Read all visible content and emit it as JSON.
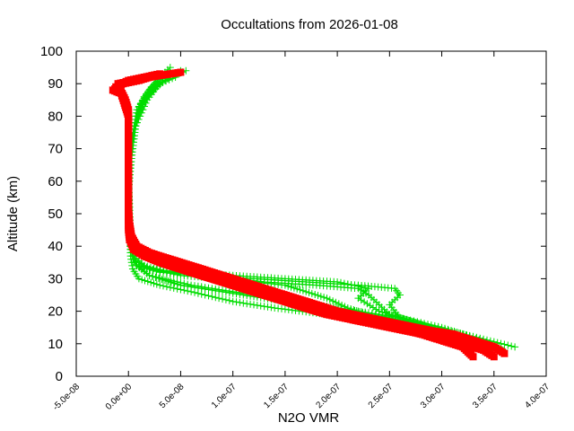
{
  "chart_data": {
    "type": "scatter",
    "title": "Occultations from 2026-01-08",
    "xlabel": "N2O VMR",
    "ylabel": "Altitude (km)",
    "xlim": [
      -5e-08,
      4e-07
    ],
    "ylim": [
      0,
      100
    ],
    "x_ticks": [
      -5e-08,
      0,
      5e-08,
      1e-07,
      1.5e-07,
      2e-07,
      2.5e-07,
      3e-07,
      3.5e-07,
      4e-07
    ],
    "x_tick_labels": [
      "-5.0e-08",
      "0.0e+00",
      "5.0e-08",
      "1.0e-07",
      "1.5e-07",
      "2.0e-07",
      "2.5e-07",
      "3.0e-07",
      "3.5e-07",
      "4.0e-07"
    ],
    "y_ticks": [
      0,
      10,
      20,
      30,
      40,
      50,
      60,
      70,
      80,
      90,
      100
    ],
    "y_tick_labels": [
      "0",
      "10",
      "20",
      "30",
      "40",
      "50",
      "60",
      "70",
      "80",
      "90",
      "100"
    ],
    "grid": false,
    "colors": {
      "green": "#00dd00",
      "red": "#ff0000"
    },
    "series": [
      {
        "marker": "plus",
        "line": true,
        "color": "#00dd00",
        "profiles": [
          [
            [
              3.4e-07,
              8
            ],
            [
              3.2e-07,
              11
            ],
            [
              2.9e-07,
              14
            ],
            [
              2.4e-07,
              17
            ],
            [
              1.9e-07,
              19
            ],
            [
              1.4e-07,
              21
            ],
            [
              1e-07,
              23
            ],
            [
              6e-08,
              26
            ],
            [
              3e-08,
              28
            ],
            [
              1e-08,
              30
            ],
            [
              4e-09,
              33
            ],
            [
              2e-09,
              37
            ],
            [
              1e-09,
              45
            ],
            [
              0,
              55
            ],
            [
              0,
              65
            ],
            [
              5e-09,
              75
            ],
            [
              1.5e-08,
              85
            ],
            [
              3e-08,
              90
            ],
            [
              4.5e-08,
              93
            ]
          ],
          [
            [
              3.5e-07,
              9
            ],
            [
              3.3e-07,
              12
            ],
            [
              3e-07,
              15
            ],
            [
              2.6e-07,
              18
            ],
            [
              2.2e-07,
              20
            ],
            [
              1.8e-07,
              22
            ],
            [
              1.4e-07,
              24
            ],
            [
              1e-07,
              26
            ],
            [
              6e-08,
              28
            ],
            [
              2e-08,
              31
            ],
            [
              5e-09,
              35
            ],
            [
              2e-09,
              40
            ],
            [
              1e-09,
              50
            ],
            [
              0,
              60
            ],
            [
              2e-09,
              70
            ],
            [
              8e-09,
              80
            ],
            [
              2e-08,
              87
            ],
            [
              3.5e-08,
              91
            ],
            [
              5e-08,
              94
            ]
          ],
          [
            [
              3.6e-07,
              8
            ],
            [
              3.3e-07,
              11
            ],
            [
              3e-07,
              14
            ],
            [
              2.7e-07,
              17
            ],
            [
              2.4e-07,
              20
            ],
            [
              2.2e-07,
              24
            ],
            [
              2.3e-07,
              27
            ],
            [
              2e-07,
              29
            ],
            [
              1.5e-07,
              30
            ],
            [
              1e-07,
              31
            ],
            [
              5e-08,
              32
            ],
            [
              2e-08,
              33
            ],
            [
              5e-09,
              36
            ],
            [
              2e-09,
              42
            ],
            [
              1e-09,
              50
            ],
            [
              0,
              62
            ],
            [
              3e-09,
              72
            ],
            [
              8e-09,
              82
            ],
            [
              2.5e-08,
              89
            ],
            [
              4e-08,
              92
            ],
            [
              5.5e-08,
              94
            ]
          ],
          [
            [
              3.7e-07,
              9
            ],
            [
              3.2e-07,
              13
            ],
            [
              2.8e-07,
              16
            ],
            [
              2.5e-07,
              19
            ],
            [
              2.4e-07,
              22
            ],
            [
              2.3e-07,
              25
            ],
            [
              2.2e-07,
              27
            ],
            [
              1.8e-07,
              28
            ],
            [
              1.3e-07,
              29
            ],
            [
              8e-08,
              31
            ],
            [
              4e-08,
              32
            ],
            [
              1.5e-08,
              34
            ],
            [
              5e-09,
              37
            ],
            [
              2e-09,
              43
            ],
            [
              1e-09,
              52
            ],
            [
              0,
              63
            ],
            [
              4e-09,
              73
            ],
            [
              1e-08,
              83
            ],
            [
              2e-08,
              88
            ],
            [
              3e-08,
              92
            ],
            [
              4e-08,
              95
            ]
          ],
          [
            [
              3.3e-07,
              10
            ],
            [
              3e-07,
              13
            ],
            [
              2.6e-07,
              16
            ],
            [
              2.3e-07,
              19
            ],
            [
              2.1e-07,
              21
            ],
            [
              1.9e-07,
              24
            ],
            [
              1.7e-07,
              26
            ],
            [
              1.5e-07,
              28
            ],
            [
              1.2e-07,
              29
            ],
            [
              9e-08,
              30
            ],
            [
              5e-08,
              31
            ],
            [
              2e-08,
              33
            ],
            [
              5e-09,
              36
            ],
            [
              2e-09,
              41
            ],
            [
              1e-09,
              48
            ],
            [
              0,
              58
            ],
            [
              2e-09,
              68
            ],
            [
              6e-09,
              78
            ],
            [
              1.5e-08,
              86
            ],
            [
              2.5e-08,
              90
            ],
            [
              3.5e-08,
              93
            ]
          ],
          [
            [
              3.45e-07,
              8
            ],
            [
              3.2e-07,
              12
            ],
            [
              2.9e-07,
              15
            ],
            [
              2.6e-07,
              18
            ],
            [
              2.5e-07,
              22
            ],
            [
              2.6e-07,
              25
            ],
            [
              2.55e-07,
              27
            ],
            [
              2.2e-07,
              28
            ],
            [
              1.7e-07,
              29
            ],
            [
              1.2e-07,
              30
            ],
            [
              7e-08,
              31
            ],
            [
              3e-08,
              32
            ],
            [
              8e-09,
              34
            ],
            [
              3e-09,
              38
            ],
            [
              1e-09,
              45
            ],
            [
              0,
              57
            ],
            [
              3e-09,
              67
            ],
            [
              7e-09,
              77
            ],
            [
              1.8e-08,
              85
            ],
            [
              3e-08,
              90
            ],
            [
              4.5e-08,
              92
            ]
          ],
          [
            [
              3.55e-07,
              9
            ],
            [
              3.3e-07,
              12
            ],
            [
              2.9e-07,
              15
            ],
            [
              2.5e-07,
              18
            ],
            [
              2.1e-07,
              20
            ],
            [
              1.7e-07,
              22
            ],
            [
              1.3e-07,
              24
            ],
            [
              9e-08,
              26
            ],
            [
              5e-08,
              28
            ],
            [
              2e-08,
              31
            ],
            [
              8e-09,
              34
            ],
            [
              3e-09,
              39
            ],
            [
              1e-09,
              47
            ],
            [
              0,
              56
            ],
            [
              2e-09,
              66
            ],
            [
              5e-09,
              76
            ],
            [
              1.2e-08,
              84
            ],
            [
              2.2e-08,
              89
            ],
            [
              3.5e-08,
              92
            ]
          ]
        ]
      },
      {
        "marker": "square",
        "line": false,
        "color": "#ff0000",
        "profiles": [
          [
            [
              3.5e-07,
              6
            ],
            [
              3.4e-07,
              8
            ],
            [
              3.2e-07,
              10
            ],
            [
              3e-07,
              12
            ],
            [
              2.8e-07,
              13
            ],
            [
              2.5e-07,
              15
            ],
            [
              2.2e-07,
              17
            ],
            [
              1.9e-07,
              19
            ],
            [
              1.7e-07,
              21
            ],
            [
              1.5e-07,
              23
            ],
            [
              1.3e-07,
              25
            ],
            [
              1.1e-07,
              27
            ],
            [
              9e-08,
              29
            ],
            [
              7e-08,
              31
            ],
            [
              5e-08,
              33
            ],
            [
              3e-08,
              35
            ],
            [
              1.5e-08,
              37
            ],
            [
              5e-09,
              39
            ],
            [
              1e-09,
              42
            ],
            [
              0,
              45
            ],
            [
              0,
              50
            ],
            [
              0,
              55
            ],
            [
              0,
              60
            ],
            [
              0,
              65
            ],
            [
              0,
              70
            ],
            [
              0,
              75
            ],
            [
              0,
              80
            ],
            [
              -2e-09,
              83
            ],
            [
              -5e-09,
              86
            ],
            [
              -8e-09,
              88
            ],
            [
              -1e-08,
              90
            ],
            [
              5e-09,
              91
            ],
            [
              2e-08,
              92
            ],
            [
              4e-08,
              93
            ],
            [
              5e-08,
              93.5
            ]
          ],
          [
            [
              3.6e-07,
              7
            ],
            [
              3.5e-07,
              9
            ],
            [
              3.3e-07,
              11
            ],
            [
              3.1e-07,
              13
            ],
            [
              2.9e-07,
              14
            ],
            [
              2.6e-07,
              16
            ],
            [
              2.3e-07,
              18
            ],
            [
              2e-07,
              20
            ],
            [
              1.8e-07,
              22
            ],
            [
              1.6e-07,
              24
            ],
            [
              1.4e-07,
              26
            ],
            [
              1.2e-07,
              28
            ],
            [
              1e-07,
              30
            ],
            [
              8e-08,
              32
            ],
            [
              6e-08,
              34
            ],
            [
              4e-08,
              36
            ],
            [
              2e-08,
              38
            ],
            [
              8e-09,
              40
            ],
            [
              3e-09,
              43
            ],
            [
              1e-09,
              47
            ],
            [
              0,
              52
            ],
            [
              0,
              58
            ],
            [
              0,
              63
            ],
            [
              0,
              68
            ],
            [
              0,
              73
            ],
            [
              0,
              78
            ],
            [
              0,
              82
            ],
            [
              -3e-09,
              85
            ],
            [
              -6e-09,
              87
            ],
            [
              -1.2e-08,
              89
            ],
            [
              0,
              91
            ],
            [
              1.5e-08,
              92
            ],
            [
              3e-08,
              93
            ]
          ],
          [
            [
              3.3e-07,
              6
            ],
            [
              3.2e-07,
              9
            ],
            [
              3e-07,
              11
            ],
            [
              2.7e-07,
              14
            ],
            [
              2.4e-07,
              16
            ],
            [
              2.1e-07,
              18
            ],
            [
              1.8e-07,
              20
            ],
            [
              1.6e-07,
              22
            ],
            [
              1.4e-07,
              24
            ],
            [
              1.2e-07,
              26
            ],
            [
              1e-07,
              28
            ],
            [
              8e-08,
              30
            ],
            [
              6e-08,
              32
            ],
            [
              4e-08,
              34
            ],
            [
              2.5e-08,
              36
            ],
            [
              1.2e-08,
              38
            ],
            [
              4e-09,
              41
            ],
            [
              1e-09,
              44
            ],
            [
              0,
              48
            ],
            [
              0,
              54
            ],
            [
              0,
              62
            ],
            [
              0,
              72
            ],
            [
              0,
              80
            ],
            [
              -4e-09,
              84
            ],
            [
              -7e-09,
              87
            ],
            [
              -1.5e-08,
              88
            ],
            [
              -5e-09,
              90
            ],
            [
              1e-08,
              91
            ],
            [
              2.5e-08,
              92.5
            ]
          ]
        ]
      }
    ]
  }
}
